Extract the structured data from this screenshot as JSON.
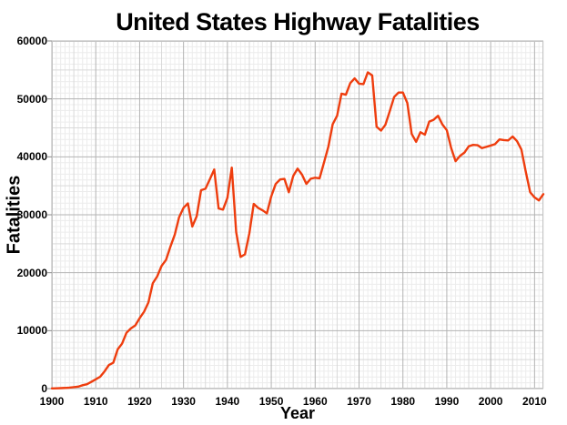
{
  "colors": {
    "background": "#ffffff",
    "text": "#000000",
    "line": "#ee3d0e",
    "grid_minor": "#ececec",
    "grid_medium": "#d9d9d9",
    "grid_major": "#b3b3b3",
    "plot_border": "#c4c4c4",
    "tick_mark": "#888888"
  },
  "chart_data": {
    "type": "line",
    "title": "United States Highway Fatalities",
    "xlabel": "Year",
    "ylabel": "Fatalities",
    "xlim": [
      1900,
      2012
    ],
    "ylim": [
      0,
      60000
    ],
    "x_ticks": [
      1900,
      1910,
      1920,
      1930,
      1940,
      1950,
      1960,
      1970,
      1980,
      1990,
      2000,
      2010
    ],
    "y_ticks": [
      0,
      10000,
      20000,
      30000,
      40000,
      50000,
      60000
    ],
    "x_minor_step": 1,
    "y_minor_step": 1000,
    "grid": "on",
    "legend": "none",
    "line_color": "#ee3d0e",
    "x": [
      1900,
      1901,
      1902,
      1903,
      1904,
      1905,
      1906,
      1907,
      1908,
      1909,
      1910,
      1911,
      1912,
      1913,
      1914,
      1915,
      1916,
      1917,
      1918,
      1919,
      1920,
      1921,
      1922,
      1923,
      1924,
      1925,
      1926,
      1927,
      1928,
      1929,
      1930,
      1931,
      1932,
      1933,
      1934,
      1935,
      1936,
      1937,
      1938,
      1939,
      1940,
      1941,
      1942,
      1943,
      1944,
      1945,
      1946,
      1947,
      1948,
      1949,
      1950,
      1951,
      1952,
      1953,
      1954,
      1955,
      1956,
      1957,
      1958,
      1959,
      1960,
      1961,
      1962,
      1963,
      1964,
      1965,
      1966,
      1967,
      1968,
      1969,
      1970,
      1971,
      1972,
      1973,
      1974,
      1975,
      1976,
      1977,
      1978,
      1979,
      1980,
      1981,
      1982,
      1983,
      1984,
      1985,
      1986,
      1987,
      1988,
      1989,
      1990,
      1991,
      1992,
      1993,
      1994,
      1995,
      1996,
      1997,
      1998,
      1999,
      2000,
      2001,
      2002,
      2003,
      2004,
      2005,
      2006,
      2007,
      2008,
      2009,
      2010,
      2011,
      2012
    ],
    "values": [
      36,
      54,
      79,
      117,
      172,
      252,
      338,
      581,
      751,
      1174,
      1599,
      2043,
      2968,
      4079,
      4468,
      6779,
      7766,
      9630,
      10390,
      10896,
      12155,
      13253,
      14859,
      18183,
      19359,
      21171,
      22194,
      24470,
      26557,
      29592,
      31204,
      31963,
      27979,
      29746,
      34240,
      34494,
      36126,
      37819,
      31083,
      30895,
      32914,
      38142,
      27007,
      22727,
      23165,
      26785,
      31874,
      31193,
      30775,
      30246,
      33186,
      35309,
      36088,
      36190,
      33890,
      36688,
      37965,
      36932,
      35331,
      36223,
      36399,
      36285,
      38980,
      41723,
      45645,
      47089,
      50894,
      50724,
      52725,
      53543,
      52627,
      52542,
      54589,
      54052,
      45196,
      44525,
      45523,
      47878,
      50331,
      51093,
      51091,
      49301,
      43945,
      42589,
      44257,
      43825,
      46087,
      46390,
      47087,
      45582,
      44599,
      41508,
      39250,
      40150,
      40716,
      41817,
      42065,
      42013,
      41501,
      41717,
      41945,
      42196,
      43005,
      42884,
      42836,
      43510,
      42708,
      41259,
      37423,
      33883,
      32999,
      32479,
      33561
    ]
  }
}
